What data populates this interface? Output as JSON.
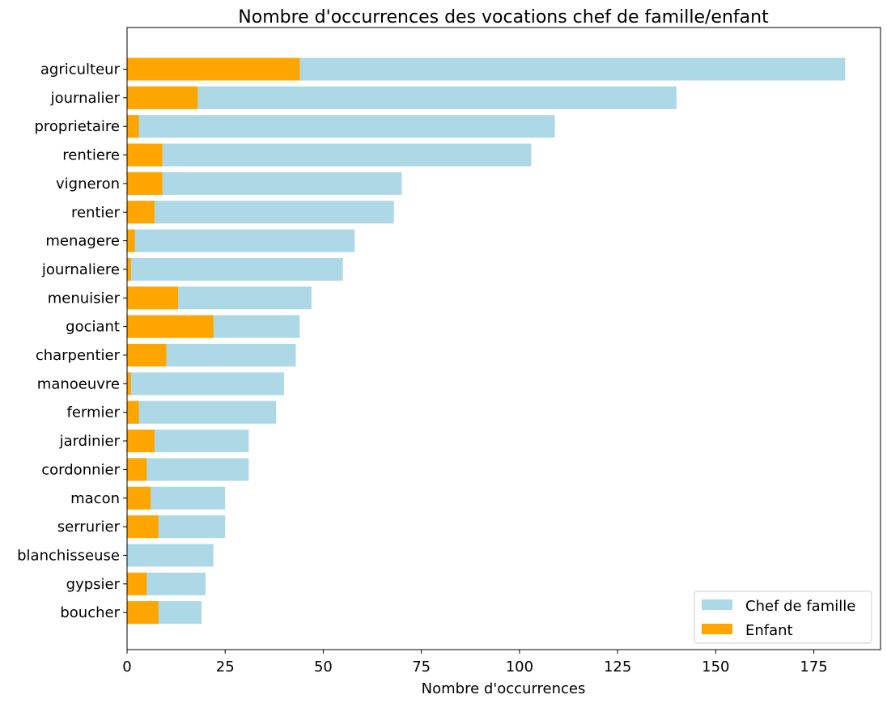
{
  "chart_data": {
    "type": "bar",
    "orientation": "horizontal",
    "title": "Nombre d'occurrences des vocations chef de famille/enfant",
    "xlabel": "Nombre d'occurrences",
    "ylabel": "",
    "xlim": [
      0,
      192
    ],
    "xticks": [
      0,
      25,
      50,
      75,
      100,
      125,
      150,
      175
    ],
    "categories": [
      "agriculteur",
      "journalier",
      "proprietaire",
      "rentiere",
      "vigneron",
      "rentier",
      "menagere",
      "journaliere",
      "menuisier",
      "gociant",
      "charpentier",
      "manoeuvre",
      "fermier",
      "jardinier",
      "cordonnier",
      "macon",
      "serrurier",
      "blanchisseuse",
      "gypsier",
      "boucher"
    ],
    "series": [
      {
        "name": "Chef de famille",
        "color": "#add8e6",
        "values": [
          183,
          140,
          109,
          103,
          70,
          68,
          58,
          55,
          47,
          44,
          43,
          40,
          38,
          31,
          31,
          25,
          25,
          22,
          20,
          19
        ]
      },
      {
        "name": "Enfant",
        "color": "#ffa500",
        "values": [
          44,
          18,
          3,
          9,
          9,
          7,
          2,
          1,
          13,
          22,
          10,
          1,
          3,
          7,
          5,
          6,
          8,
          0,
          5,
          8
        ]
      }
    ],
    "overlay": true,
    "grid": false,
    "legend_position": "lower right"
  }
}
